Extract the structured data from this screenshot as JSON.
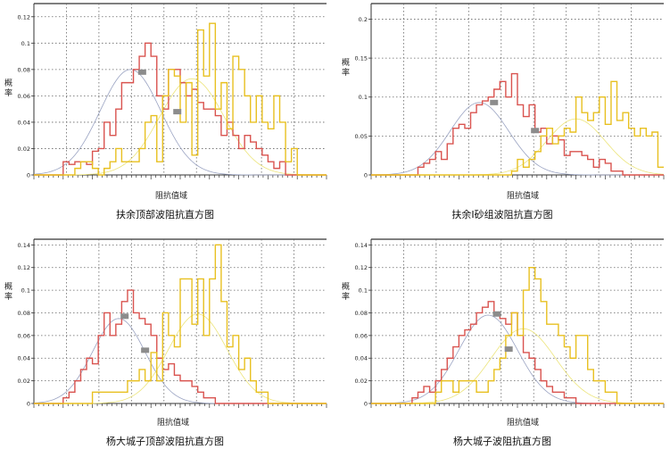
{
  "chart_data": [
    {
      "type": "histogram",
      "title": "扶余顶部波阻抗直方图",
      "xlabel": "阻抗值域",
      "ylabel": "概率",
      "ylim": [
        0,
        0.13
      ],
      "yticks": [
        0,
        0.02,
        0.04,
        0.06,
        0.08,
        0.1,
        0.12
      ],
      "grid": true,
      "series": [
        {
          "color": "#d9534f",
          "values": [
            0,
            0,
            0,
            0,
            0,
            0.01,
            0.008,
            0.01,
            0.01,
            0.008,
            0.018,
            0.02,
            0.04,
            0.03,
            0.05,
            0.07,
            0.07,
            0.08,
            0.09,
            0.1,
            0.09,
            0.06,
            0.05,
            0.08,
            0.08,
            0.07,
            0.06,
            0.065,
            0.055,
            0.05,
            0.05,
            0.045,
            0.03,
            0.04,
            0.03,
            0.02,
            0.03,
            0.025,
            0.02,
            0.015,
            0.01,
            0.005,
            0.01,
            0,
            0,
            0,
            0,
            0,
            0,
            0
          ],
          "fit": {
            "mean": 16.5,
            "sd": 5.2,
            "peak": 0.08
          }
        },
        {
          "color": "#e8c020",
          "values": [
            0,
            0,
            0,
            0,
            0,
            0,
            0,
            0.005,
            0.01,
            0.01,
            0.005,
            0,
            0.005,
            0.01,
            0.02,
            0.01,
            0.01,
            0.01,
            0.02,
            0.04,
            0.045,
            0.01,
            0.06,
            0.08,
            0.075,
            0.04,
            0.07,
            0.015,
            0.11,
            0.075,
            0.115,
            0.05,
            0.07,
            0.035,
            0.09,
            0.08,
            0.06,
            0.04,
            0.06,
            0.04,
            0.035,
            0.06,
            0.04,
            0.01,
            0.02,
            0,
            0,
            0,
            0,
            0
          ],
          "fit": {
            "mean": 27,
            "sd": 5.5,
            "peak": 0.073
          }
        }
      ],
      "markers": [
        {
          "x": 18.5,
          "y": 0.078
        },
        {
          "x": 24.5,
          "y": 0.048
        }
      ]
    },
    {
      "type": "histogram",
      "title": "扶余I砂组波阻抗直方图",
      "xlabel": "阻抗值域",
      "ylabel": "概率",
      "ylim": [
        0,
        0.22
      ],
      "yticks": [
        0,
        0.05,
        0.1,
        0.15,
        0.2
      ],
      "grid": true,
      "series": [
        {
          "color": "#d9534f",
          "values": [
            0,
            0,
            0,
            0,
            0,
            0,
            0,
            0,
            0.01,
            0.015,
            0.02,
            0.03,
            0.02,
            0.04,
            0.06,
            0.065,
            0.06,
            0.08,
            0.09,
            0.095,
            0.1,
            0.11,
            0.12,
            0.1,
            0.13,
            0.09,
            0.075,
            0.09,
            0.055,
            0.06,
            0.04,
            0.05,
            0.045,
            0.025,
            0.03,
            0.03,
            0.025,
            0.02,
            0.01,
            0.02,
            0.015,
            0.005,
            0.005,
            0,
            0,
            0,
            0,
            0,
            0,
            0
          ],
          "fit": {
            "mean": 18.5,
            "sd": 5.0,
            "peak": 0.093
          }
        },
        {
          "color": "#e8c020",
          "values": [
            0,
            0,
            0,
            0,
            0,
            0,
            0,
            0,
            0,
            0,
            0,
            0,
            0,
            0,
            0,
            0,
            0,
            0,
            0,
            0,
            0,
            0,
            0,
            0,
            0.005,
            0.02,
            0.01,
            0.02,
            0.03,
            0.05,
            0.06,
            0.04,
            0.05,
            0.06,
            0.055,
            0.1,
            0.08,
            0.07,
            0.08,
            0.1,
            0.065,
            0.12,
            0.07,
            0.08,
            0.06,
            0.05,
            0.06,
            0.05,
            0.055,
            0.01
          ],
          "fit": {
            "mean": 35,
            "sd": 5.0,
            "peak": 0.072
          }
        }
      ],
      "markers": [
        {
          "x": 21,
          "y": 0.093
        },
        {
          "x": 28,
          "y": 0.057
        }
      ]
    },
    {
      "type": "histogram",
      "title": "杨大城子顶部波阻抗直方图",
      "xlabel": "阻抗值域",
      "ylabel": "概率",
      "ylim": [
        0,
        0.145
      ],
      "yticks": [
        0,
        0.02,
        0.04,
        0.06,
        0.08,
        0.1,
        0.12,
        0.14
      ],
      "grid": true,
      "series": [
        {
          "color": "#d9534f",
          "values": [
            0,
            0,
            0,
            0,
            0,
            0.005,
            0.01,
            0.02,
            0.03,
            0.04,
            0.035,
            0.06,
            0.08,
            0.06,
            0.07,
            0.09,
            0.1,
            0.08,
            0.075,
            0.07,
            0.06,
            0.04,
            0.03,
            0.035,
            0.025,
            0.02,
            0.02,
            0.015,
            0.01,
            0.005,
            0.005,
            0,
            0,
            0,
            0,
            0,
            0,
            0,
            0,
            0,
            0,
            0,
            0,
            0,
            0,
            0,
            0,
            0,
            0,
            0
          ],
          "fit": {
            "mean": 14.5,
            "sd": 4.5,
            "peak": 0.075
          }
        },
        {
          "color": "#e8c020",
          "values": [
            0,
            0,
            0,
            0,
            0,
            0,
            0,
            0,
            0,
            0,
            0.01,
            0.01,
            0.01,
            0.01,
            0.01,
            0.01,
            0.02,
            0.02,
            0.03,
            0.02,
            0.045,
            0.02,
            0.08,
            0.06,
            0.05,
            0.11,
            0.11,
            0.07,
            0.11,
            0.06,
            0.11,
            0.14,
            0.09,
            0.05,
            0.06,
            0.03,
            0.04,
            0.02,
            0.01,
            0.01,
            0,
            0,
            0,
            0,
            0,
            0,
            0,
            0,
            0,
            0
          ],
          "fit": {
            "mean": 28,
            "sd": 5.0,
            "peak": 0.079
          }
        }
      ],
      "markers": [
        {
          "x": 15.5,
          "y": 0.077
        },
        {
          "x": 19,
          "y": 0.047
        }
      ]
    },
    {
      "type": "histogram",
      "title": "杨大城子波阻抗直方图",
      "xlabel": "阻抗值域",
      "ylabel": "概率",
      "ylim": [
        0,
        0.145
      ],
      "yticks": [
        0,
        0.02,
        0.04,
        0.06,
        0.08,
        0.1,
        0.12,
        0.14
      ],
      "grid": true,
      "series": [
        {
          "color": "#d9534f",
          "values": [
            0,
            0,
            0,
            0,
            0,
            0,
            0,
            0.005,
            0.01,
            0.015,
            0.01,
            0.02,
            0.03,
            0.04,
            0.05,
            0.06,
            0.065,
            0.07,
            0.08,
            0.085,
            0.09,
            0.08,
            0.075,
            0.07,
            0.08,
            0.06,
            0.045,
            0.04,
            0.03,
            0.02,
            0.015,
            0.01,
            0.01,
            0.005,
            0.005,
            0,
            0,
            0,
            0,
            0,
            0,
            0,
            0,
            0,
            0,
            0,
            0,
            0,
            0,
            0
          ],
          "fit": {
            "mean": 20,
            "sd": 5.0,
            "peak": 0.078
          }
        },
        {
          "color": "#e8c020",
          "values": [
            0,
            0,
            0,
            0,
            0,
            0,
            0,
            0,
            0,
            0,
            0,
            0.01,
            0.02,
            0.02,
            0.01,
            0.02,
            0.02,
            0.02,
            0.01,
            0.01,
            0.02,
            0.03,
            0.04,
            0.06,
            0.08,
            0.06,
            0.1,
            0.12,
            0.11,
            0.09,
            0.07,
            0.07,
            0.06,
            0.05,
            0.04,
            0.06,
            0.06,
            0.03,
            0.02,
            0.02,
            0.01,
            0.01,
            0,
            0,
            0,
            0,
            0,
            0,
            0,
            0
          ],
          "fit": {
            "mean": 26,
            "sd": 5.5,
            "peak": 0.066
          }
        }
      ],
      "markers": [
        {
          "x": 21.5,
          "y": 0.079
        },
        {
          "x": 23.5,
          "y": 0.048
        }
      ]
    }
  ]
}
